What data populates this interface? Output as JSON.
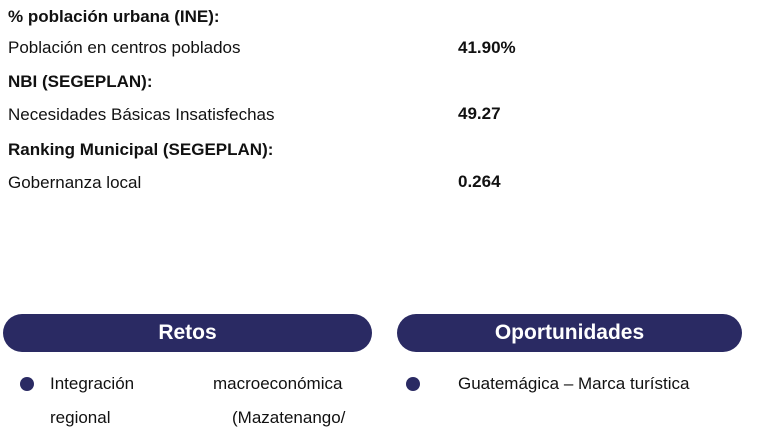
{
  "sections": [
    {
      "header": "% población urbana (INE):",
      "label": "Población en centros poblados",
      "value": "41.90%"
    },
    {
      "header": "NBI (SEGEPLAN):",
      "label": "Necesidades Básicas Insatisfechas",
      "value": "49.27"
    },
    {
      "header": "Ranking Municipal (SEGEPLAN):",
      "label": "Gobernanza local",
      "value": "0.264"
    }
  ],
  "retos": {
    "title": "Retos",
    "item1": {
      "line1_left": "Integración",
      "line1_right": "macroeconómica",
      "line2_left": "regional",
      "line2_right": "(Mazatenango/"
    }
  },
  "oportunidades": {
    "title": "Oportunidades",
    "item1": "Guatemágica – Marca turística"
  },
  "colors": {
    "pill": "#2a2a63",
    "text": "#111111"
  }
}
